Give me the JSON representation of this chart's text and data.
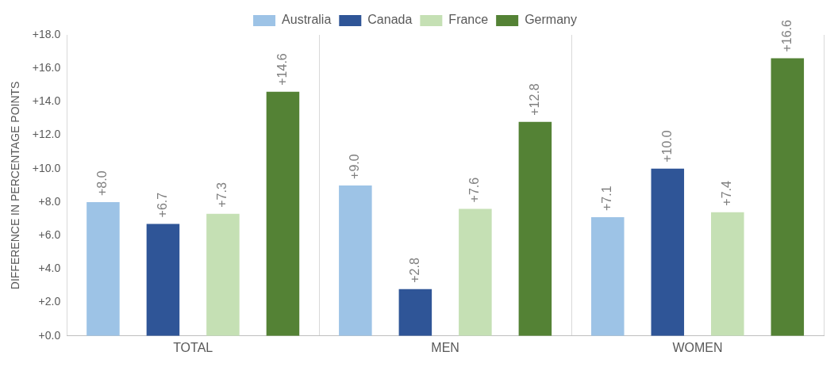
{
  "chart_data": {
    "type": "bar",
    "ylabel": "DIFFERENCE IN PERCENTAGE POINTS",
    "categories": [
      "TOTAL",
      "MEN",
      "WOMEN"
    ],
    "series": [
      {
        "name": "Australia",
        "color": "#9dc3e6",
        "values": [
          8.0,
          9.0,
          7.1
        ],
        "value_labels": [
          "+8.0",
          "+9.0",
          "+7.1"
        ]
      },
      {
        "name": "Canada",
        "color": "#2f5597",
        "values": [
          6.7,
          2.8,
          10.0
        ],
        "value_labels": [
          "+6.7",
          "+2.8",
          "+10.0"
        ]
      },
      {
        "name": "France",
        "color": "#c5e0b4",
        "values": [
          7.3,
          7.6,
          7.4
        ],
        "value_labels": [
          "+7.3",
          "+7.6",
          "+7.4"
        ]
      },
      {
        "name": "Germany",
        "color": "#548235",
        "values": [
          14.6,
          12.8,
          16.6
        ],
        "value_labels": [
          "+14.6",
          "+12.8",
          "+16.6"
        ]
      }
    ],
    "ylim": [
      0,
      18
    ],
    "yticks": [
      {
        "value": 0,
        "label": "+0.0"
      },
      {
        "value": 2,
        "label": "+2.0"
      },
      {
        "value": 4,
        "label": "+4.0"
      },
      {
        "value": 6,
        "label": "+6.0"
      },
      {
        "value": 8,
        "label": "+8.0"
      },
      {
        "value": 10,
        "label": "+10.0"
      },
      {
        "value": 12,
        "label": "+12.0"
      },
      {
        "value": 14,
        "label": "+14.0"
      },
      {
        "value": 16,
        "label": "+16.0"
      },
      {
        "value": 18,
        "label": "+18.0"
      }
    ],
    "grid": "x",
    "legend": "top"
  }
}
